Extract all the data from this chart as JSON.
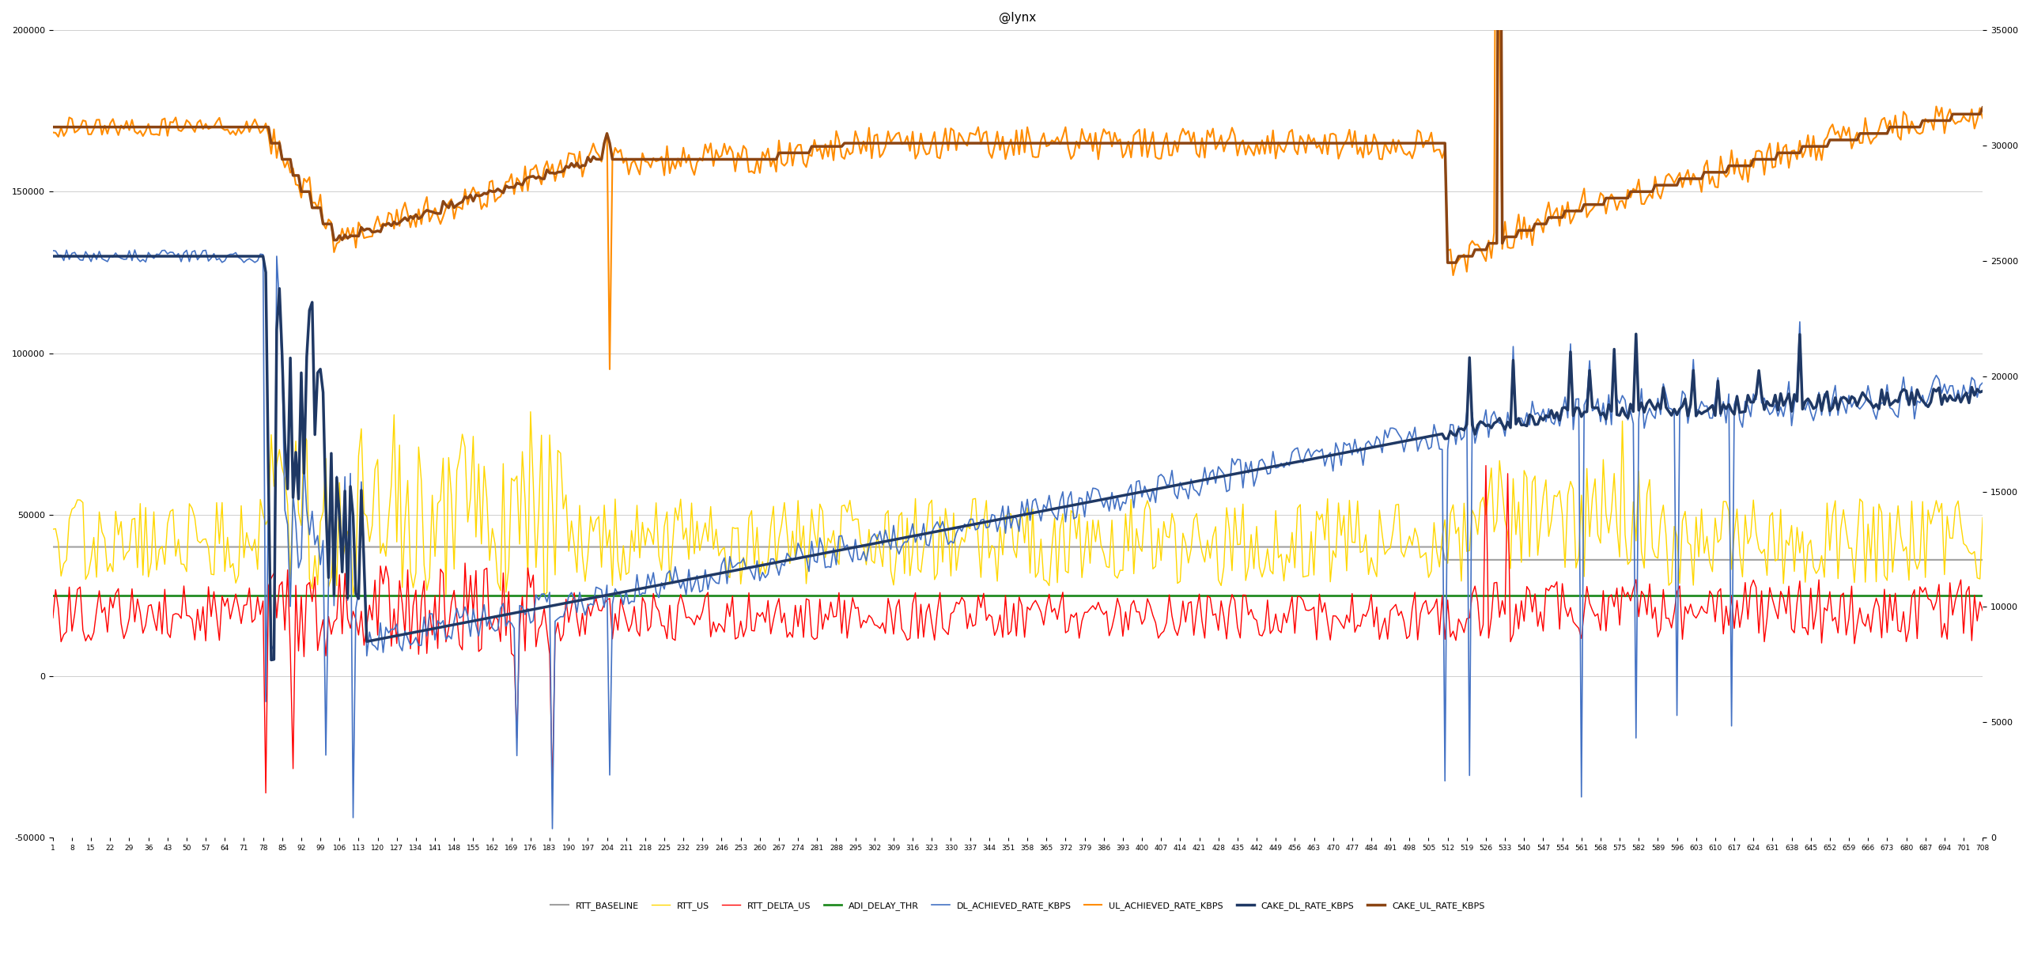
{
  "title": "@lynx",
  "title_fontsize": 11,
  "left_ylim": [
    -50000,
    200000
  ],
  "right_ylim": [
    0,
    35000
  ],
  "left_yticks": [
    -50000,
    0,
    50000,
    100000,
    150000,
    200000
  ],
  "right_yticks": [
    0,
    5000,
    10000,
    15000,
    20000,
    25000,
    30000,
    35000
  ],
  "n_points": 708,
  "background_color": "#ffffff",
  "grid_color": "#c8c8c8",
  "series": {
    "RTT_BASELINE": {
      "color": "#a0a0a0",
      "lw": 1.5,
      "zorder": 2
    },
    "RTT_US": {
      "color": "#FFD700",
      "lw": 1.0,
      "zorder": 3
    },
    "RTT_DELTA_US": {
      "color": "#FF0000",
      "lw": 1.0,
      "zorder": 3
    },
    "ADI_DELAY_THR": {
      "color": "#228B22",
      "lw": 2.0,
      "zorder": 2
    },
    "DL_ACHIEVED_RATE_KBPS": {
      "color": "#4472C4",
      "lw": 1.2,
      "zorder": 4
    },
    "UL_ACHIEVED_RATE_KBPS": {
      "color": "#FF8C00",
      "lw": 1.5,
      "zorder": 3
    },
    "CAKE_DL_RATE_KBPS": {
      "color": "#1F3864",
      "lw": 2.5,
      "zorder": 5
    },
    "CAKE_UL_RATE_KBPS": {
      "color": "#8B4513",
      "lw": 2.5,
      "zorder": 5
    }
  },
  "legend_order": [
    "RTT_BASELINE",
    "RTT_US",
    "RTT_DELTA_US",
    "ADI_DELAY_THR",
    "DL_ACHIEVED_RATE_KBPS",
    "UL_ACHIEVED_RATE_KBPS",
    "CAKE_DL_RATE_KBPS",
    "CAKE_UL_RATE_KBPS"
  ],
  "legend_labels": {
    "RTT_BASELINE": "RTT_BASELINE",
    "RTT_US": "RTT_US",
    "RTT_DELTA_US": "RTT_DELTA_US",
    "ADI_DELAY_THR": "ADI_DELAY_THR",
    "DL_ACHIEVED_RATE_KBPS": "DL_ACHIEVED_RATE_KBPS",
    "UL_ACHIEVED_RATE_KBPS": "UL_ACHIEVED_RATE_KBPS",
    "CAKE_DL_RATE_KBPS": "CAKE_DL_RATE_KBPS",
    "CAKE_UL_RATE_KBPS": "CAKE_UL_RATE_KBPS"
  }
}
